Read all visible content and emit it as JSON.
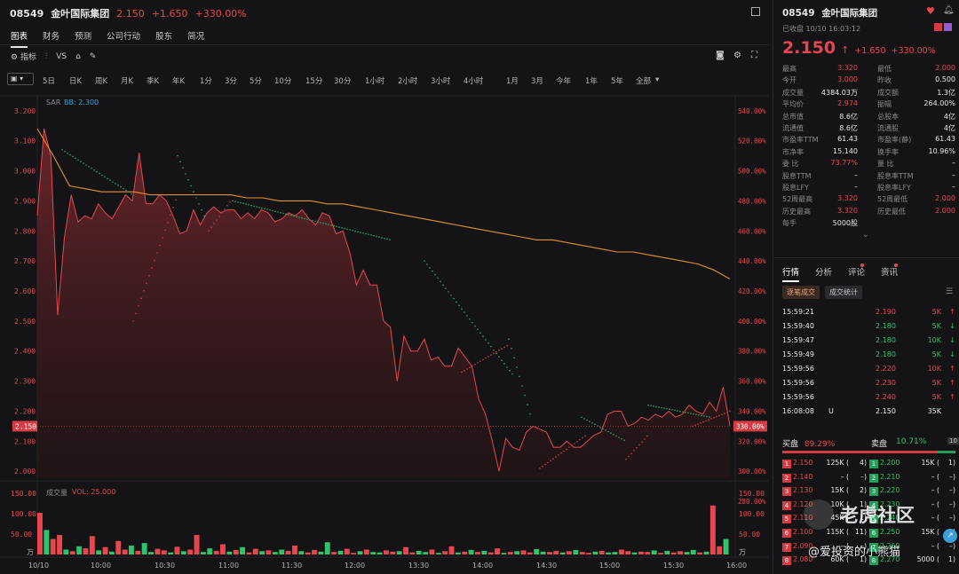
{
  "header": {
    "code": "08549",
    "name": "金叶国际集团",
    "price": "2.150",
    "change": "+1.650",
    "pct": "+330.00%"
  },
  "tabs": [
    "图表",
    "财务",
    "预测",
    "公司行动",
    "股东",
    "简况"
  ],
  "toolbar": {
    "indicator": "指标",
    "vs": "VS"
  },
  "periods": [
    "5日",
    "日K",
    "周K",
    "月K",
    "季K",
    "年K",
    "1分",
    "3分",
    "5分",
    "10分",
    "15分",
    "30分",
    "1小时",
    "2小时",
    "3小时",
    "4小时",
    "1月",
    "3月",
    "今年",
    "1年",
    "5年",
    "全部"
  ],
  "indicator_labels": {
    "sar": "SAR",
    "bb": "BB: 2.300",
    "vol_title": "成交量",
    "vol": "VOL: 25.000"
  },
  "price_axis": [
    "3.200",
    "3.100",
    "3.000",
    "2.900",
    "2.800",
    "2.700",
    "2.600",
    "2.500",
    "2.400",
    "2.300",
    "2.200",
    "2.150",
    "2.100",
    "2.000"
  ],
  "pct_axis": [
    "540.00%",
    "520.00%",
    "500.00%",
    "480.00%",
    "460.00%",
    "440.00%",
    "420.00%",
    "400.00%",
    "380.00%",
    "360.00%",
    "340.00%",
    "330.00%",
    "320.00%",
    "300.00%",
    "280.00%"
  ],
  "vol_axis": [
    "150.00",
    "100.00",
    "50.00",
    "万"
  ],
  "time_axis": [
    "10/10",
    "10:00",
    "10:30",
    "11:00",
    "11:30",
    "12:00",
    "13:30",
    "14:00",
    "14:30",
    "15:00",
    "15:30",
    "16:00"
  ],
  "chart_data": {
    "type": "line",
    "x_labels": [
      "10/10",
      "10:00",
      "10:30",
      "11:00",
      "11:30",
      "12:00",
      "13:30",
      "14:00",
      "14:30",
      "15:00",
      "15:30",
      "16:00"
    ],
    "price_ylim": [
      1.98,
      3.22
    ],
    "price": [
      2.85,
      3.14,
      3.05,
      2.52,
      2.78,
      2.92,
      2.83,
      2.85,
      2.84,
      2.89,
      2.86,
      2.84,
      2.88,
      2.92,
      2.9,
      3.06,
      2.89,
      2.89,
      2.92,
      2.9,
      2.85,
      2.79,
      2.8,
      2.87,
      2.82,
      2.86,
      2.88,
      2.86,
      2.87,
      2.87,
      2.84,
      2.86,
      2.84,
      2.87,
      2.86,
      2.83,
      2.84,
      2.86,
      2.85,
      2.87,
      2.84,
      2.82,
      2.86,
      2.85,
      2.79,
      2.8,
      2.73,
      2.62,
      2.67,
      2.62,
      2.62,
      2.5,
      2.48,
      2.3,
      2.45,
      2.4,
      2.4,
      2.44,
      2.37,
      2.38,
      2.35,
      2.35,
      2.41,
      2.38,
      2.35,
      2.24,
      2.19,
      2.1,
      2.0,
      2.11,
      2.08,
      2.07,
      2.13,
      2.15,
      2.14,
      2.13,
      2.08,
      2.08,
      2.1,
      2.08,
      2.08,
      2.1,
      2.12,
      2.13,
      2.19,
      2.2,
      2.2,
      2.15,
      2.16,
      2.18,
      2.17,
      2.19,
      2.18,
      2.2,
      2.18,
      2.19,
      2.22,
      2.2,
      2.19,
      2.23,
      2.2,
      2.28,
      2.15
    ],
    "avg": [
      3.14,
      3.05,
      2.95,
      2.94,
      2.93,
      2.93,
      2.93,
      2.92,
      2.92,
      2.92,
      2.92,
      2.92,
      2.92,
      2.91,
      2.91,
      2.9,
      2.9,
      2.9,
      2.89,
      2.89,
      2.88,
      2.87,
      2.86,
      2.85,
      2.84,
      2.83,
      2.82,
      2.81,
      2.8,
      2.79,
      2.78,
      2.77,
      2.77,
      2.76,
      2.75,
      2.74,
      2.73,
      2.73,
      2.72,
      2.71,
      2.7,
      2.69,
      2.67,
      2.64
    ],
    "sar": [
      3.07,
      3.0,
      2.95,
      2.9,
      2.88,
      2.86,
      2.84,
      2.82,
      2.8,
      2.6,
      2.5,
      2.45,
      2.4,
      2.35,
      2.3,
      2.26,
      2.22,
      2.2,
      2.18,
      2.16,
      2.12,
      2.08,
      2.06,
      2.03,
      2.02
    ],
    "volume_ylim": [
      0,
      150
    ],
    "volume": [
      102,
      60,
      38,
      48,
      12,
      8,
      20,
      15,
      45,
      10,
      18,
      7,
      33,
      12,
      22,
      9,
      28,
      6,
      14,
      10,
      5,
      19,
      8,
      12,
      48,
      6,
      15,
      9,
      25,
      7,
      11,
      18,
      5,
      14,
      8,
      10,
      6,
      12,
      9,
      22,
      8,
      5,
      11,
      7,
      30,
      6,
      9,
      14,
      4,
      8,
      12,
      6,
      5,
      10,
      7,
      8,
      18,
      5,
      9,
      6,
      12,
      4,
      8,
      20,
      5,
      7,
      11,
      6,
      9,
      5,
      15,
      4,
      6,
      8,
      10,
      5,
      13,
      7,
      6,
      9,
      5,
      8,
      11,
      6,
      4,
      7,
      9,
      5,
      6,
      12,
      8,
      5,
      7,
      6,
      10,
      4,
      9,
      5,
      8,
      6,
      11,
      5,
      7,
      120,
      20,
      38
    ],
    "volume_up": [
      1,
      0,
      1,
      1,
      0,
      1,
      0,
      1,
      1,
      0,
      1,
      0,
      1,
      1,
      0,
      1,
      0,
      0,
      1,
      1,
      0,
      1,
      0,
      1,
      1,
      0,
      0,
      1,
      1,
      0,
      1,
      0,
      1,
      1,
      0,
      1,
      0,
      0,
      1,
      1,
      0,
      1,
      1,
      0,
      0,
      1,
      0,
      1,
      1,
      0,
      1,
      0,
      0,
      1,
      1,
      0,
      1,
      1,
      0,
      0,
      1,
      0,
      1,
      1,
      0,
      1,
      0,
      1,
      0,
      1,
      1,
      0,
      1,
      0,
      1,
      1,
      0,
      0,
      1,
      1,
      0,
      1,
      0,
      1,
      1,
      0,
      1,
      0,
      0,
      1,
      1,
      0,
      1,
      1,
      0,
      1,
      0,
      1,
      1,
      0,
      0,
      1,
      0,
      1,
      1,
      0
    ]
  },
  "right": {
    "code": "08549",
    "name": "金叶国际集团",
    "status": "已收盘 10/10 16:03:12",
    "price": "2.150",
    "change": "+1.650",
    "pct": "+330.00%",
    "stats": [
      [
        "最高",
        "3.320",
        "up",
        "最低",
        "2.000",
        "up"
      ],
      [
        "今开",
        "3.000",
        "up",
        "昨收",
        "0.500",
        "wh"
      ],
      [
        "成交量",
        "4384.03万",
        "wh",
        "成交额",
        "1.3亿",
        "wh"
      ],
      [
        "平均价",
        "2.974",
        "up",
        "振幅",
        "264.00%",
        "wh"
      ],
      [
        "总市值",
        "8.6亿",
        "wh",
        "总股本",
        "4亿",
        "wh"
      ],
      [
        "流通值",
        "8.6亿",
        "wh",
        "流通股",
        "4亿",
        "wh"
      ],
      [
        "市盈率TTM",
        "61.43",
        "wh",
        "市盈率(静)",
        "61.43",
        "wh"
      ],
      [
        "市净率",
        "15.140",
        "wh",
        "换手率",
        "10.96%",
        "wh"
      ],
      [
        "委 比",
        "73.77%",
        "up",
        "量 比",
        "–",
        "wh"
      ],
      [
        "股息TTM",
        "–",
        "wh",
        "股息率TTM",
        "–",
        "wh"
      ],
      [
        "股息LFY",
        "–",
        "wh",
        "股息率LFY",
        "–",
        "wh"
      ],
      [
        "52周最高",
        "3.320",
        "up",
        "52周最低",
        "2.000",
        "up"
      ],
      [
        "历史最高",
        "3.320",
        "up",
        "历史最低",
        "2.000",
        "up"
      ],
      [
        "每手",
        "5000股",
        "wh",
        "",
        "",
        ""
      ]
    ],
    "tabs": [
      "行情",
      "分析",
      "评论",
      "资讯"
    ],
    "subtabs": [
      "逐笔成交",
      "成交统计"
    ],
    "trades": [
      [
        "15:59:21",
        "",
        "2.190",
        "5K",
        "up"
      ],
      [
        "15:59:40",
        "",
        "2.180",
        "5K",
        "dn"
      ],
      [
        "15:59:47",
        "",
        "2.180",
        "10K",
        "dn"
      ],
      [
        "15:59:49",
        "",
        "2.180",
        "5K",
        "dn"
      ],
      [
        "15:59:56",
        "",
        "2.220",
        "10K",
        "up"
      ],
      [
        "15:59:56",
        "",
        "2.230",
        "5K",
        "up"
      ],
      [
        "15:59:56",
        "",
        "2.240",
        "5K",
        "up"
      ],
      [
        "16:08:08",
        "U",
        "2.150",
        "35K",
        "wh"
      ]
    ],
    "buy_label": "买盘",
    "buy_pct": "89.29%",
    "sell_label": "卖盘",
    "sell_pct": "10.71%",
    "depth": "10",
    "orderbook": [
      [
        "1",
        "2.150",
        "125K (",
        "4)",
        "1",
        "2.200",
        "15K (",
        "1)"
      ],
      [
        "2",
        "2.140",
        "– (",
        "–)",
        "2",
        "2.210",
        "– (",
        "–)"
      ],
      [
        "3",
        "2.130",
        "15K (",
        "2)",
        "3",
        "2.220",
        "– (",
        "–)"
      ],
      [
        "4",
        "2.120",
        "10K (",
        "1)",
        "4",
        "2.230",
        "– (",
        "–)"
      ],
      [
        "5",
        "2.110",
        "45K (",
        "1)",
        "5",
        "2.240",
        "– (",
        "–)"
      ],
      [
        "6",
        "2.100",
        "115K (",
        "11)",
        "6",
        "2.250",
        "15K (",
        "1)"
      ],
      [
        "7",
        "2.090",
        "– (",
        "–)",
        "7",
        "2.260",
        "– (",
        "–)"
      ],
      [
        "8",
        "2.080",
        "60K (",
        "1)",
        "8",
        "2.270",
        "5000 (",
        "1)"
      ]
    ]
  },
  "watermark": {
    "brand": "老虎社区",
    "user": "@爱投资的小熊猫"
  }
}
